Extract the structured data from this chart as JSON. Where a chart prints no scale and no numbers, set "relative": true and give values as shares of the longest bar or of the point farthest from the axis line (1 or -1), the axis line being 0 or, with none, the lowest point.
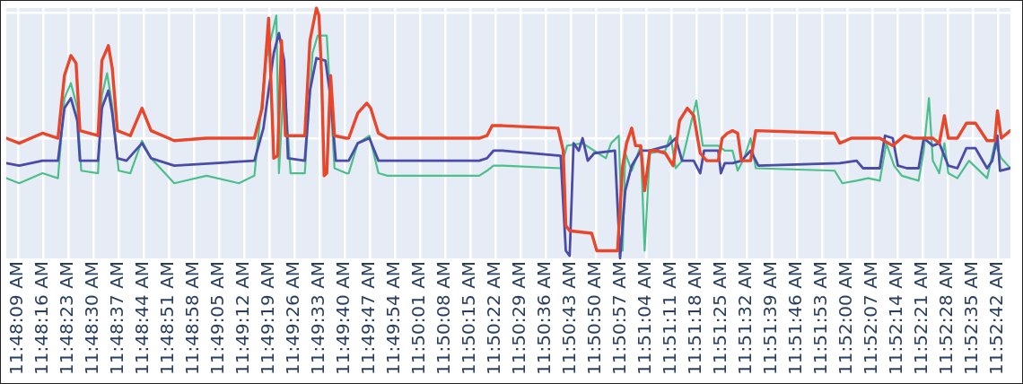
{
  "chart_data": {
    "type": "line",
    "relative": true,
    "grid": true,
    "xlim": [
      11.8016,
      11.8793
    ],
    "xticks": [
      {
        "value": 11.8025,
        "label": "11:48:09 AM"
      },
      {
        "value": 11.804444,
        "label": "11:48:16 AM"
      },
      {
        "value": 11.806389,
        "label": "11:48:23 AM"
      },
      {
        "value": 11.808333,
        "label": "11:48:30 AM"
      },
      {
        "value": 11.810278,
        "label": "11:48:37 AM"
      },
      {
        "value": 11.812222,
        "label": "11:48:44 AM"
      },
      {
        "value": 11.814167,
        "label": "11:48:51 AM"
      },
      {
        "value": 11.816111,
        "label": "11:48:58 AM"
      },
      {
        "value": 11.818056,
        "label": "11:49:05 AM"
      },
      {
        "value": 11.82,
        "label": "11:49:12 AM"
      },
      {
        "value": 11.821944,
        "label": "11:49:19 AM"
      },
      {
        "value": 11.823889,
        "label": "11:49:26 AM"
      },
      {
        "value": 11.825833,
        "label": "11:49:33 AM"
      },
      {
        "value": 11.827778,
        "label": "11:49:40 AM"
      },
      {
        "value": 11.829722,
        "label": "11:49:47 AM"
      },
      {
        "value": 11.831667,
        "label": "11:49:54 AM"
      },
      {
        "value": 11.833611,
        "label": "11:50:01 AM"
      },
      {
        "value": 11.835556,
        "label": "11:50:08 AM"
      },
      {
        "value": 11.8375,
        "label": "11:50:15 AM"
      },
      {
        "value": 11.839444,
        "label": "11:50:22 AM"
      },
      {
        "value": 11.841389,
        "label": "11:50:29 AM"
      },
      {
        "value": 11.843333,
        "label": "11:50:36 AM"
      },
      {
        "value": 11.845278,
        "label": "11:50:43 AM"
      },
      {
        "value": 11.847222,
        "label": "11:50:50 AM"
      },
      {
        "value": 11.849167,
        "label": "11:50:57 AM"
      },
      {
        "value": 11.851111,
        "label": "11:51:04 AM"
      },
      {
        "value": 11.853056,
        "label": "11:51:11 AM"
      },
      {
        "value": 11.855,
        "label": "11:51:18 AM"
      },
      {
        "value": 11.856944,
        "label": "11:51:25 AM"
      },
      {
        "value": 11.858889,
        "label": "11:51:32 AM"
      },
      {
        "value": 11.860833,
        "label": "11:51:39 AM"
      },
      {
        "value": 11.862778,
        "label": "11:51:46 AM"
      },
      {
        "value": 11.864722,
        "label": "11:51:53 AM"
      },
      {
        "value": 11.866667,
        "label": "11:52:00 AM"
      },
      {
        "value": 11.868611,
        "label": "11:52:07 AM"
      },
      {
        "value": 11.870556,
        "label": "11:52:14 AM"
      },
      {
        "value": 11.8725,
        "label": "11:52:21 AM"
      },
      {
        "value": 11.874444,
        "label": "11:52:28 AM"
      },
      {
        "value": 11.876389,
        "label": "11:52:35 AM"
      },
      {
        "value": 11.878333,
        "label": "11:52:42 AM"
      }
    ],
    "series": [
      {
        "color": "#e8472c",
        "x": [
          11.8016,
          11.8026,
          11.8044,
          11.8056,
          11.8061,
          11.8066,
          11.807,
          11.8073,
          11.8087,
          11.809,
          11.8095,
          11.8098,
          11.8102,
          11.8112,
          11.8121,
          11.8128,
          11.8146,
          11.8171,
          11.8196,
          11.8208,
          11.8214,
          11.8219,
          11.8223,
          11.8226,
          11.8229,
          11.8232,
          11.8247,
          11.8251,
          11.8256,
          11.8258,
          11.826,
          11.8262,
          11.8264,
          11.8267,
          11.827,
          11.8279,
          11.8281,
          11.8288,
          11.8295,
          11.8298,
          11.8304,
          11.8311,
          11.8382,
          11.8388,
          11.8392,
          11.84,
          11.8443,
          11.8447,
          11.8449,
          11.8452,
          11.8469,
          11.8473,
          11.8489,
          11.8493,
          11.8496,
          11.85,
          11.8503,
          11.8507,
          11.851,
          11.8514,
          11.8519,
          11.8526,
          11.8532,
          11.8537,
          11.8543,
          11.8548,
          11.8553,
          11.8558,
          11.8567,
          11.857,
          11.8574,
          11.8578,
          11.8582,
          11.8585,
          11.8592,
          11.8596,
          11.8657,
          11.8661,
          11.867,
          11.8679,
          11.8692,
          11.8702,
          11.8711,
          11.8718,
          11.8724,
          11.8733,
          11.8738,
          11.8742,
          11.8745,
          11.8752,
          11.8759,
          11.8766,
          11.8775,
          11.8781,
          11.8783,
          11.8786,
          11.8793
        ],
        "values": [
          0.48,
          0.46,
          0.5,
          0.48,
          0.73,
          0.81,
          0.78,
          0.51,
          0.49,
          0.79,
          0.85,
          0.76,
          0.51,
          0.49,
          0.6,
          0.51,
          0.47,
          0.48,
          0.48,
          0.48,
          0.6,
          0.96,
          0.4,
          0.41,
          0.87,
          0.49,
          0.49,
          0.87,
          1.0,
          0.97,
          0.73,
          0.33,
          0.34,
          0.73,
          0.49,
          0.48,
          0.48,
          0.58,
          0.62,
          0.6,
          0.5,
          0.48,
          0.48,
          0.49,
          0.53,
          0.53,
          0.52,
          0.43,
          0.13,
          0.11,
          0.1,
          0.03,
          0.03,
          0.37,
          0.46,
          0.52,
          0.45,
          0.45,
          0.27,
          0.43,
          0.43,
          0.42,
          0.37,
          0.55,
          0.6,
          0.57,
          0.42,
          0.39,
          0.39,
          0.48,
          0.5,
          0.51,
          0.5,
          0.39,
          0.39,
          0.51,
          0.5,
          0.46,
          0.48,
          0.48,
          0.48,
          0.45,
          0.49,
          0.48,
          0.48,
          0.48,
          0.46,
          0.57,
          0.48,
          0.48,
          0.54,
          0.54,
          0.47,
          0.47,
          0.59,
          0.48,
          0.51
        ]
      },
      {
        "color": "#4b4ba8",
        "x": [
          11.8016,
          11.8026,
          11.8044,
          11.8056,
          11.8061,
          11.8066,
          11.8071,
          11.8073,
          11.8087,
          11.809,
          11.8095,
          11.8098,
          11.8102,
          11.8109,
          11.8121,
          11.8128,
          11.8146,
          11.8208,
          11.8215,
          11.8223,
          11.8227,
          11.8231,
          11.8234,
          11.8247,
          11.8251,
          11.8256,
          11.8263,
          11.8267,
          11.8271,
          11.8279,
          11.8281,
          11.8288,
          11.8297,
          11.8304,
          11.8311,
          11.8382,
          11.8388,
          11.8393,
          11.84,
          11.8445,
          11.8449,
          11.8452,
          11.8455,
          11.8459,
          11.8462,
          11.8466,
          11.8471,
          11.8487,
          11.8491,
          11.8495,
          11.85,
          11.8507,
          11.8514,
          11.8528,
          11.8534,
          11.8539,
          11.8548,
          11.8553,
          11.8556,
          11.8567,
          11.8569,
          11.8572,
          11.8578,
          11.8585,
          11.8592,
          11.8598,
          11.8661,
          11.8674,
          11.8679,
          11.8692,
          11.8696,
          11.8702,
          11.8706,
          11.8713,
          11.8722,
          11.8726,
          11.8733,
          11.8738,
          11.8745,
          11.8752,
          11.8759,
          11.8766,
          11.8775,
          11.8779,
          11.8783,
          11.8785,
          11.8793
        ],
        "values": [
          0.38,
          0.37,
          0.39,
          0.39,
          0.6,
          0.64,
          0.55,
          0.39,
          0.39,
          0.6,
          0.67,
          0.58,
          0.4,
          0.39,
          0.46,
          0.4,
          0.37,
          0.39,
          0.52,
          0.82,
          0.9,
          0.79,
          0.4,
          0.39,
          0.67,
          0.8,
          0.79,
          0.64,
          0.39,
          0.39,
          0.39,
          0.46,
          0.48,
          0.39,
          0.39,
          0.39,
          0.4,
          0.43,
          0.43,
          0.41,
          0.03,
          0.01,
          0.46,
          0.43,
          0.48,
          0.39,
          0.42,
          0.43,
          0.0,
          0.27,
          0.37,
          0.43,
          0.43,
          0.45,
          0.48,
          0.39,
          0.39,
          0.34,
          0.43,
          0.43,
          0.34,
          0.38,
          0.38,
          0.39,
          0.43,
          0.37,
          0.38,
          0.39,
          0.36,
          0.36,
          0.49,
          0.48,
          0.37,
          0.36,
          0.36,
          0.48,
          0.45,
          0.46,
          0.37,
          0.36,
          0.44,
          0.44,
          0.36,
          0.39,
          0.49,
          0.35,
          0.36
        ]
      },
      {
        "color": "#4cbf8a",
        "x": [
          11.8016,
          11.8026,
          11.8044,
          11.8056,
          11.8061,
          11.8066,
          11.8071,
          11.8074,
          11.8087,
          11.809,
          11.8094,
          11.8098,
          11.8103,
          11.8112,
          11.8121,
          11.8128,
          11.8146,
          11.8171,
          11.8196,
          11.8208,
          11.8217,
          11.8225,
          11.8227,
          11.8231,
          11.8236,
          11.8247,
          11.8253,
          11.8257,
          11.8264,
          11.827,
          11.8279,
          11.8281,
          11.8288,
          11.8297,
          11.8304,
          11.8311,
          11.8382,
          11.8388,
          11.8393,
          11.84,
          11.8445,
          11.845,
          11.8462,
          11.8471,
          11.848,
          11.8484,
          11.849,
          11.8493,
          11.8495,
          11.85,
          11.8507,
          11.851,
          11.8514,
          11.8526,
          11.853,
          11.8534,
          11.8539,
          11.855,
          11.8555,
          11.8567,
          11.8572,
          11.8578,
          11.8582,
          11.8587,
          11.8592,
          11.8596,
          11.8657,
          11.8663,
          11.8674,
          11.8683,
          11.8692,
          11.8697,
          11.8703,
          11.8709,
          11.8722,
          11.8726,
          11.873,
          11.8733,
          11.8738,
          11.8742,
          11.8745,
          11.8752,
          11.8761,
          11.8775,
          11.8781,
          11.8786,
          11.8793
        ],
        "values": [
          0.32,
          0.3,
          0.34,
          0.32,
          0.64,
          0.7,
          0.6,
          0.35,
          0.34,
          0.65,
          0.74,
          0.61,
          0.35,
          0.34,
          0.47,
          0.4,
          0.3,
          0.33,
          0.3,
          0.33,
          0.79,
          0.97,
          0.34,
          0.73,
          0.34,
          0.34,
          0.82,
          0.89,
          0.89,
          0.36,
          0.34,
          0.34,
          0.46,
          0.49,
          0.34,
          0.33,
          0.33,
          0.35,
          0.37,
          0.37,
          0.36,
          0.45,
          0.46,
          0.43,
          0.4,
          0.46,
          0.49,
          0.03,
          0.42,
          0.35,
          0.45,
          0.03,
          0.42,
          0.43,
          0.49,
          0.36,
          0.39,
          0.63,
          0.45,
          0.45,
          0.43,
          0.43,
          0.35,
          0.4,
          0.48,
          0.36,
          0.35,
          0.3,
          0.31,
          0.32,
          0.31,
          0.46,
          0.37,
          0.33,
          0.31,
          0.43,
          0.64,
          0.39,
          0.34,
          0.46,
          0.34,
          0.32,
          0.39,
          0.32,
          0.46,
          0.4,
          0.36
        ]
      }
    ]
  }
}
